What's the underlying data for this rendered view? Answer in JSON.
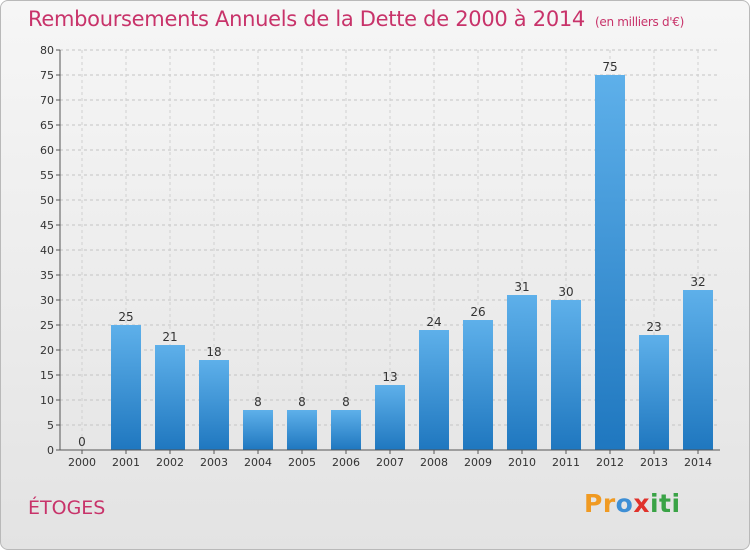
{
  "header": {
    "title": "Remboursements Annuels de la Dette de 2000 à 2014",
    "subtitle": "(en milliers d'€)"
  },
  "footer": {
    "place": "ÉTOGES",
    "logo": {
      "p1": "Pr",
      "p2": "o",
      "p3": "x",
      "p4": "iti"
    }
  },
  "colors": {
    "title": "#c8336a",
    "bar_light": "#5eb0ea",
    "bar_dark": "#1f77bf"
  },
  "chart_data": {
    "type": "bar",
    "categories": [
      "2000",
      "2001",
      "2002",
      "2003",
      "2004",
      "2005",
      "2006",
      "2007",
      "2008",
      "2009",
      "2010",
      "2011",
      "2012",
      "2013",
      "2014"
    ],
    "values": [
      0,
      25,
      21,
      18,
      8,
      8,
      8,
      13,
      24,
      26,
      31,
      30,
      75,
      23,
      32
    ],
    "title": "Remboursements Annuels de la Dette de 2000 à 2014",
    "subtitle": "(en milliers d'€)",
    "xlabel": "",
    "ylabel": "",
    "ylim": [
      0,
      80
    ],
    "yticks": [
      0,
      5,
      10,
      15,
      20,
      25,
      30,
      35,
      40,
      45,
      50,
      55,
      60,
      65,
      70,
      75,
      80
    ],
    "grid": true,
    "data_labels": true,
    "legend": "none"
  }
}
